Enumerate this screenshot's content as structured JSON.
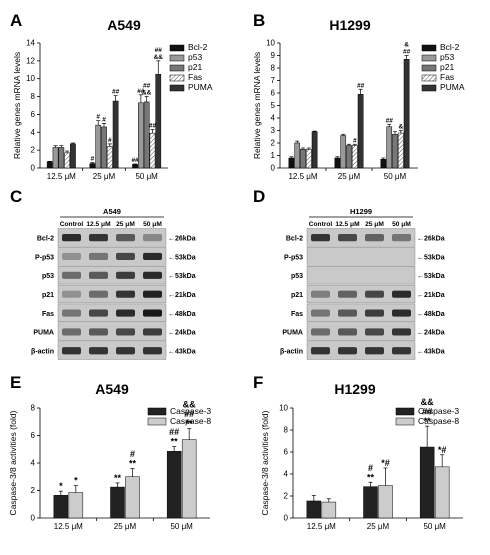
{
  "panels": {
    "A": {
      "letter": "A",
      "title": "A549"
    },
    "B": {
      "letter": "B",
      "title": "H1299"
    },
    "C": {
      "letter": "C",
      "cell_line": "A549"
    },
    "D": {
      "letter": "D",
      "cell_line": "H1299"
    },
    "E": {
      "letter": "E",
      "title": "A549"
    },
    "F": {
      "letter": "F",
      "title": "H1299"
    }
  },
  "blots": {
    "lane_labels": [
      "Control",
      "12.5 μM",
      "25 μM",
      "50 μM"
    ],
    "row_labels": [
      "Bcl-2",
      "P-p53",
      "p53",
      "p21",
      "Fas",
      "PUMA",
      "β-actin"
    ],
    "size_labels": [
      "←26kDa",
      "←53kDa",
      "←53kDa",
      "←21kDa",
      "←48kDa",
      "←24kDa",
      "←43kDa"
    ],
    "band_intensity": {
      "A549": [
        [
          0.85,
          0.8,
          0.6,
          0.35
        ],
        [
          0.3,
          0.45,
          0.7,
          0.85
        ],
        [
          0.5,
          0.6,
          0.75,
          0.85
        ],
        [
          0.3,
          0.5,
          0.8,
          0.9
        ],
        [
          0.45,
          0.7,
          0.85,
          0.95
        ],
        [
          0.5,
          0.6,
          0.7,
          0.75
        ],
        [
          0.8,
          0.8,
          0.8,
          0.8
        ]
      ],
      "H1299": [
        [
          0.8,
          0.7,
          0.55,
          0.45
        ],
        [
          0,
          0,
          0,
          0
        ],
        [
          0,
          0,
          0,
          0
        ],
        [
          0.4,
          0.55,
          0.7,
          0.85
        ],
        [
          0.45,
          0.6,
          0.75,
          0.85
        ],
        [
          0.5,
          0.6,
          0.7,
          0.8
        ],
        [
          0.8,
          0.8,
          0.8,
          0.8
        ]
      ]
    }
  },
  "chart_data": [
    {
      "type": "bar",
      "title": "A549",
      "ylabel": "Relative genes mRNA levels",
      "categories": [
        "12.5 μM",
        "25 μM",
        "50 μM"
      ],
      "ylim": [
        0,
        14
      ],
      "yticks": [
        0,
        2,
        4,
        6,
        8,
        10,
        12,
        14
      ],
      "legend": "right",
      "series": [
        {
          "name": "Bcl-2",
          "values": [
            0.7,
            0.5,
            0.4
          ],
          "errors": [
            0.05,
            0.1,
            0.05
          ],
          "color": "#111111",
          "pattern": "solid"
        },
        {
          "name": "p53",
          "values": [
            2.3,
            4.8,
            7.3
          ],
          "errors": [
            0.2,
            0.5,
            0.9
          ],
          "color": "#999999",
          "pattern": "solid"
        },
        {
          "name": "p21",
          "values": [
            2.3,
            4.6,
            7.4
          ],
          "errors": [
            0.2,
            0.4,
            0.6
          ],
          "color": "#777777",
          "pattern": "solid"
        },
        {
          "name": "Fas",
          "values": [
            1.7,
            2.4,
            3.9
          ],
          "errors": [
            0.2,
            0.3,
            0.4
          ],
          "color": "#ffffff",
          "pattern": "hatch"
        },
        {
          "name": "PUMA",
          "values": [
            2.7,
            7.5,
            10.5
          ],
          "errors": [
            0.1,
            0.6,
            1.5
          ],
          "color": "#333333",
          "pattern": "solid"
        }
      ],
      "annotations": [
        {
          "group": 1,
          "series": 0,
          "text": "#"
        },
        {
          "group": 1,
          "series": 1,
          "text": "#"
        },
        {
          "group": 1,
          "series": 2,
          "text": "#"
        },
        {
          "group": 1,
          "series": 3,
          "text": "#"
        },
        {
          "group": 1,
          "series": 4,
          "text": "##"
        },
        {
          "group": 2,
          "series": 0,
          "text": "##"
        },
        {
          "group": 2,
          "series": 1,
          "text": "##"
        },
        {
          "group": 2,
          "series": 2,
          "text": "##\n&&"
        },
        {
          "group": 2,
          "series": 3,
          "text": "##"
        },
        {
          "group": 2,
          "series": 4,
          "text": "##\n&&"
        }
      ]
    },
    {
      "type": "bar",
      "title": "H1299",
      "ylabel": "Relative genes mRNA levels",
      "categories": [
        "12.5 μM",
        "25 μM",
        "50 μM"
      ],
      "ylim": [
        0,
        10
      ],
      "yticks": [
        0,
        1,
        2,
        3,
        4,
        5,
        6,
        7,
        8,
        9,
        10
      ],
      "legend": "right",
      "series": [
        {
          "name": "Bcl-2",
          "values": [
            0.8,
            0.8,
            0.7
          ],
          "errors": [
            0.1,
            0.1,
            0.1
          ],
          "color": "#111111",
          "pattern": "solid"
        },
        {
          "name": "p53",
          "values": [
            2.0,
            2.6,
            3.3
          ],
          "errors": [
            0.15,
            0.1,
            0.2
          ],
          "color": "#999999",
          "pattern": "solid"
        },
        {
          "name": "p21",
          "values": [
            1.5,
            1.8,
            2.7
          ],
          "errors": [
            0.1,
            0.1,
            0.2
          ],
          "color": "#777777",
          "pattern": "solid"
        },
        {
          "name": "Fas",
          "values": [
            1.5,
            1.8,
            2.8
          ],
          "errors": [
            0.1,
            0.1,
            0.2
          ],
          "color": "#ffffff",
          "pattern": "hatch"
        },
        {
          "name": "PUMA",
          "values": [
            2.9,
            5.9,
            8.7
          ],
          "errors": [
            0.05,
            0.4,
            0.3
          ],
          "color": "#333333",
          "pattern": "solid"
        }
      ],
      "annotations": [
        {
          "group": 1,
          "series": 3,
          "text": "#"
        },
        {
          "group": 1,
          "series": 4,
          "text": "##"
        },
        {
          "group": 2,
          "series": 1,
          "text": "##"
        },
        {
          "group": 2,
          "series": 3,
          "text": "&"
        },
        {
          "group": 2,
          "series": 4,
          "text": "&\n##"
        }
      ]
    },
    {
      "type": "bar",
      "title": "A549",
      "ylabel": "Caspase-3/8 activities (fold)",
      "categories": [
        "12.5 μM",
        "25 μM",
        "50 μM"
      ],
      "ylim": [
        0,
        8
      ],
      "yticks": [
        0,
        2,
        4,
        6,
        8
      ],
      "legend": "top-right",
      "series": [
        {
          "name": "Caspase-3",
          "values": [
            1.65,
            2.25,
            4.85
          ],
          "errors": [
            0.3,
            0.3,
            0.35
          ],
          "color": "#222222",
          "pattern": "solid"
        },
        {
          "name": "Caspase-8",
          "values": [
            1.85,
            3.0,
            5.7
          ],
          "errors": [
            0.5,
            0.6,
            0.8
          ],
          "color": "#cccccc",
          "pattern": "solid"
        }
      ],
      "annotations": [
        {
          "group": 0,
          "series": 0,
          "text": "*"
        },
        {
          "group": 0,
          "series": 1,
          "text": "*"
        },
        {
          "group": 1,
          "series": 0,
          "text": "**"
        },
        {
          "group": 1,
          "series": 1,
          "text": "#\n**"
        },
        {
          "group": 2,
          "series": 0,
          "text": "##\n**"
        },
        {
          "group": 2,
          "series": 1,
          "text": "&&\n##\n**"
        }
      ]
    },
    {
      "type": "bar",
      "title": "H1299",
      "ylabel": "Caspase-3/8 activities (fold)",
      "categories": [
        "12.5 μM",
        "25 μM",
        "50 μM"
      ],
      "ylim": [
        0,
        10
      ],
      "yticks": [
        0,
        2,
        4,
        6,
        8,
        10
      ],
      "legend": "top-right",
      "series": [
        {
          "name": "Caspase-3",
          "values": [
            1.55,
            2.85,
            6.45
          ],
          "errors": [
            0.5,
            0.4,
            1.9
          ],
          "color": "#222222",
          "pattern": "solid"
        },
        {
          "name": "Caspase-8",
          "values": [
            1.45,
            2.95,
            4.65
          ],
          "errors": [
            0.3,
            1.6,
            1.1
          ],
          "color": "#cccccc",
          "pattern": "solid"
        }
      ],
      "annotations": [
        {
          "group": 1,
          "series": 0,
          "text": "#\n**"
        },
        {
          "group": 1,
          "series": 1,
          "text": "*#"
        },
        {
          "group": 2,
          "series": 0,
          "text": "&&\n##\n**"
        },
        {
          "group": 2,
          "series": 1,
          "text": "*#"
        }
      ]
    }
  ]
}
